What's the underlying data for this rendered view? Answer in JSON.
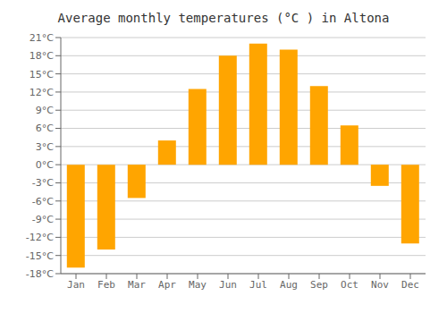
{
  "chart_data": {
    "type": "bar",
    "title": "Average monthly temperatures (°C ) in Altona",
    "categories": [
      "Jan",
      "Feb",
      "Mar",
      "Apr",
      "May",
      "Jun",
      "Jul",
      "Aug",
      "Sep",
      "Oct",
      "Nov",
      "Dec"
    ],
    "values": [
      -17,
      -14,
      -5.5,
      4,
      12.5,
      18,
      20,
      19,
      13,
      6.5,
      -3.5,
      -13
    ],
    "color": "#FFA500",
    "ylim": [
      -18,
      21
    ],
    "yticks": [
      {
        "value": -18,
        "label": "-18°C"
      },
      {
        "value": -15,
        "label": "-15°C"
      },
      {
        "value": -12,
        "label": "-12°C"
      },
      {
        "value": -9,
        "label": "-9°C"
      },
      {
        "value": -6,
        "label": "-6°C"
      },
      {
        "value": -3,
        "label": "-3°C"
      },
      {
        "value": 0,
        "label": "0°C"
      },
      {
        "value": 3,
        "label": "3°C"
      },
      {
        "value": 6,
        "label": "6°C"
      },
      {
        "value": 9,
        "label": "9°C"
      },
      {
        "value": 12,
        "label": "12°C"
      },
      {
        "value": 15,
        "label": "15°C"
      },
      {
        "value": 18,
        "label": "18°C"
      },
      {
        "value": 21,
        "label": "21°C"
      }
    ],
    "grid": true
  }
}
